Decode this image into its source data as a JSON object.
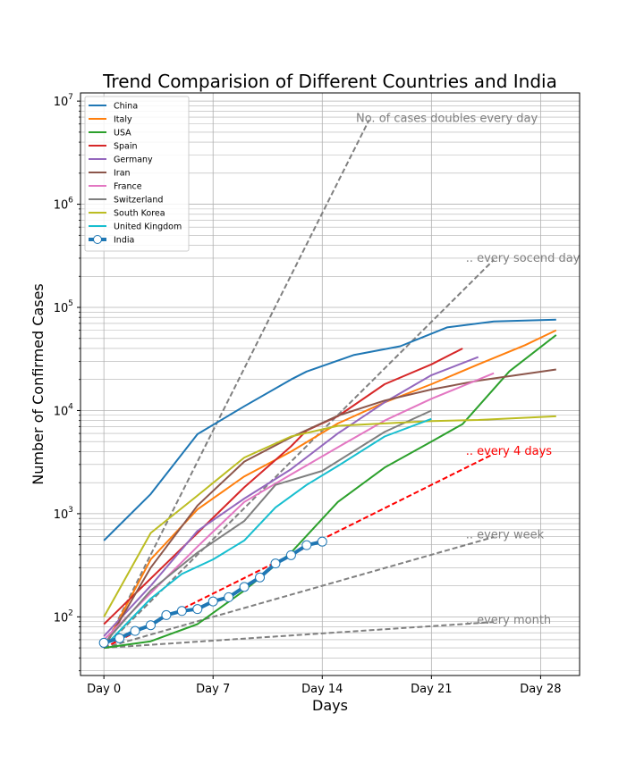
{
  "chart_data": {
    "type": "line",
    "title": "Trend Comparision of Different Countries and India",
    "xlabel": "Days",
    "ylabel": "Number of Confirmed Cases",
    "yscale": "log",
    "xlim": [
      -1.5,
      30.5
    ],
    "ylim": [
      27,
      12000000
    ],
    "xticks": [
      0,
      7,
      14,
      21,
      28
    ],
    "xticklabels": [
      "Day 0",
      "Day 7",
      "Day 14",
      "Day 21",
      "Day 28"
    ],
    "yticks": [
      100,
      1000,
      10000,
      100000,
      1000000,
      10000000
    ],
    "grid": true,
    "legend_position": "upper-left",
    "series": [
      {
        "name": "China",
        "color": "#1f77b4",
        "x": [
          0,
          3,
          6,
          9,
          12,
          13,
          16,
          19,
          22,
          25,
          29
        ],
        "y": [
          550,
          1550,
          5900,
          11000,
          20000,
          23900,
          34500,
          42000,
          64000,
          73000,
          76000
        ]
      },
      {
        "name": "Italy",
        "color": "#ff7f0e",
        "x": [
          0,
          3,
          6,
          9,
          12,
          15,
          18,
          21,
          24,
          27,
          29
        ],
        "y": [
          50,
          360,
          1100,
          2300,
          4000,
          7500,
          12000,
          18000,
          28000,
          43000,
          60000
        ]
      },
      {
        "name": "USA",
        "color": "#2ca02c",
        "x": [
          0,
          3,
          6,
          9,
          12,
          15,
          18,
          21,
          23,
          26,
          29
        ],
        "y": [
          50,
          58,
          85,
          180,
          420,
          1300,
          2800,
          5000,
          7400,
          24000,
          54000
        ]
      },
      {
        "name": "Spain",
        "color": "#d62728",
        "x": [
          0,
          3,
          6,
          9,
          12,
          13,
          15,
          18,
          21,
          23
        ],
        "y": [
          85,
          235,
          650,
          1800,
          4500,
          6400,
          8800,
          18000,
          28000,
          40000
        ]
      },
      {
        "name": "Germany",
        "color": "#9467bd",
        "x": [
          0,
          3,
          6,
          9,
          12,
          15,
          18,
          21,
          24
        ],
        "y": [
          65,
          200,
          680,
          1400,
          2700,
          6000,
          12000,
          22000,
          33000
        ]
      },
      {
        "name": "Iran",
        "color": "#8c564b",
        "x": [
          0,
          3,
          6,
          9,
          12,
          15,
          18,
          21,
          24,
          29
        ],
        "y": [
          50,
          300,
          1200,
          3200,
          5500,
          8900,
          12500,
          16000,
          19500,
          25000
        ]
      },
      {
        "name": "France",
        "color": "#e377c2",
        "x": [
          0,
          3,
          6,
          9,
          12,
          15,
          18,
          21,
          25
        ],
        "y": [
          60,
          170,
          480,
          1300,
          2400,
          4400,
          8000,
          13000,
          23000
        ]
      },
      {
        "name": "Switzerland",
        "color": "#7f7f7f",
        "x": [
          0,
          3,
          6,
          9,
          11,
          14,
          18,
          21
        ],
        "y": [
          55,
          180,
          420,
          850,
          1900,
          2600,
          6200,
          10000
        ]
      },
      {
        "name": "South Korea",
        "color": "#bcbd22",
        "x": [
          0,
          3,
          6,
          9,
          12,
          15,
          18,
          21,
          24,
          29
        ],
        "y": [
          100,
          650,
          1500,
          3500,
          5600,
          7100,
          7500,
          7900,
          8100,
          8800
        ]
      },
      {
        "name": "United Kingdom",
        "color": "#17becf",
        "x": [
          0,
          3,
          5,
          7,
          9,
          11,
          13,
          15,
          18,
          21
        ],
        "y": [
          51,
          150,
          260,
          360,
          550,
          1150,
          1900,
          2900,
          5600,
          8300
        ]
      },
      {
        "name": "India",
        "color": "#1f77b4",
        "x": [
          0,
          1,
          2,
          3,
          4,
          5,
          6,
          7,
          8,
          9,
          10,
          11,
          12,
          13,
          14
        ],
        "y": [
          56,
          62,
          73,
          83,
          104,
          114,
          119,
          141,
          155,
          195,
          241,
          329,
          396,
          495,
          536
        ]
      }
    ],
    "reference_lines": [
      {
        "label": "No. of cases doubles every day",
        "color": "#808080",
        "doubling_days": 1,
        "x_end": 17
      },
      {
        "label": ".. every socend day",
        "color": "#808080",
        "doubling_days": 2,
        "x_end": 25
      },
      {
        "label": ".. every 4 days",
        "color": "#ff0000",
        "doubling_days": 4,
        "x_end": 25
      },
      {
        "label": ".. every week",
        "color": "#808080",
        "doubling_days": 7,
        "x_end": 25
      },
      {
        "label": ".. every month",
        "color": "#808080",
        "doubling_days": 30,
        "x_end": 25
      }
    ],
    "reference_base": 50
  }
}
